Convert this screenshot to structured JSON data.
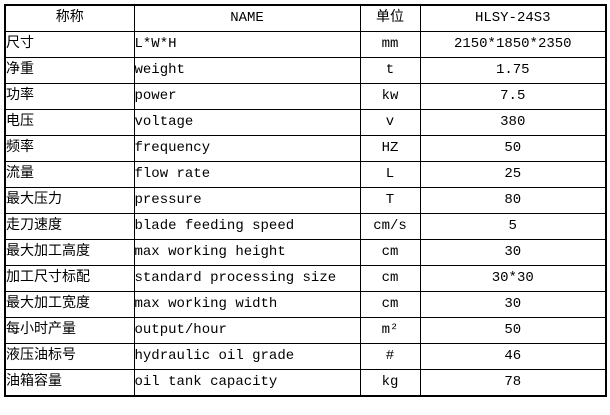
{
  "colors": {
    "border": "#000000",
    "text": "#000000",
    "background": "#ffffff"
  },
  "table": {
    "headers": [
      "称称",
      "NAME",
      "单位",
      "HLSY-24S3"
    ],
    "rows": [
      [
        "尺寸",
        "L*W*H",
        "mm",
        "2150*1850*2350"
      ],
      [
        "净重",
        "weight",
        "t",
        "1.75"
      ],
      [
        "功率",
        "power",
        "kw",
        "7.5"
      ],
      [
        "电压",
        "voltage",
        "v",
        "380"
      ],
      [
        "频率",
        "frequency",
        "HZ",
        "50"
      ],
      [
        "流量",
        "flow rate",
        "L",
        "25"
      ],
      [
        "最大压力",
        "pressure",
        "T",
        "80"
      ],
      [
        "走刀速度",
        "blade feeding speed",
        "cm/s",
        "5"
      ],
      [
        "最大加工高度",
        "max working height",
        "cm",
        "30"
      ],
      [
        "加工尺寸标配",
        "standard processing size",
        "cm",
        "30*30"
      ],
      [
        "最大加工宽度",
        "max working width",
        "cm",
        "30"
      ],
      [
        "每小时产量",
        "output/hour",
        "m²",
        "50"
      ],
      [
        "液压油标号",
        "hydraulic oil grade",
        "#",
        "46"
      ],
      [
        "油箱容量",
        "oil tank capacity",
        "kg",
        "78"
      ]
    ]
  }
}
